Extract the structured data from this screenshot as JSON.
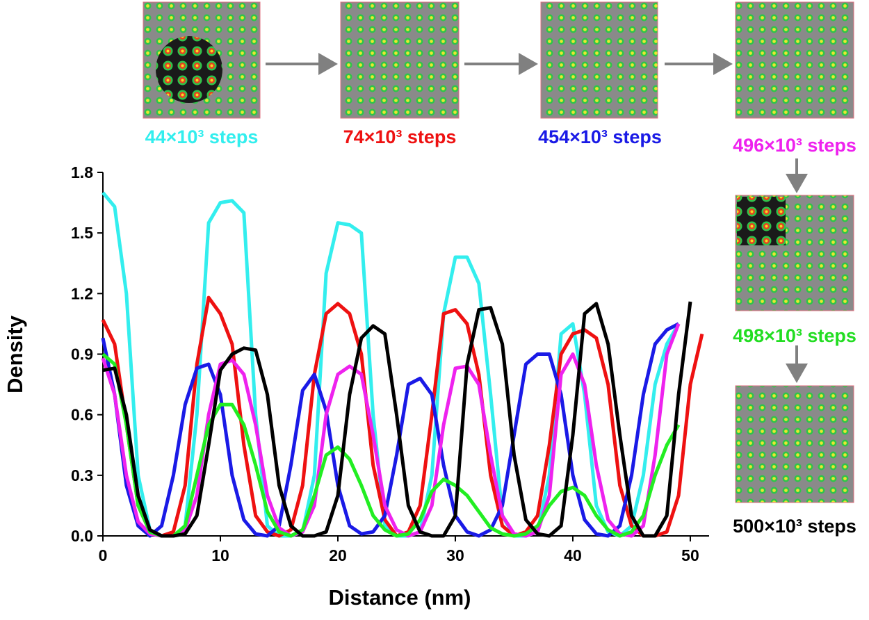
{
  "chart_data": {
    "type": "line",
    "x_label": "Distance (nm)",
    "y_label": "Density",
    "x": [
      0,
      1,
      2,
      3,
      4,
      5,
      6,
      7,
      8,
      9,
      10,
      11,
      12,
      13,
      14,
      15,
      16,
      17,
      18,
      19,
      20,
      21,
      22,
      23,
      24,
      25,
      26,
      27,
      28,
      29,
      30,
      31,
      32,
      33,
      34,
      35,
      36,
      37,
      38,
      39,
      40,
      41,
      42,
      43,
      44,
      45,
      46,
      47,
      48,
      49,
      50,
      51
    ],
    "series": [
      {
        "name": "44×10³ steps",
        "color": "#33eeee",
        "values": [
          1.7,
          1.63,
          1.2,
          0.3,
          0.03,
          0.0,
          0.0,
          0.05,
          0.6,
          1.55,
          1.65,
          1.66,
          1.6,
          0.6,
          0.05,
          0.0,
          0.0,
          0.02,
          0.3,
          1.3,
          1.55,
          1.54,
          1.5,
          0.6,
          0.05,
          0.0,
          0.0,
          0.02,
          0.3,
          1.1,
          1.38,
          1.38,
          1.25,
          0.7,
          0.1,
          0.0,
          0.0,
          0.02,
          0.3,
          1.0,
          1.05,
          0.7,
          0.15,
          0.02,
          0.0,
          0.05,
          0.3,
          0.75,
          0.95,
          1.05,
          null,
          null
        ]
      },
      {
        "name": "74×10³ steps",
        "color": "#ee1111",
        "values": [
          1.07,
          0.95,
          0.55,
          0.15,
          0.02,
          0.0,
          0.02,
          0.25,
          0.85,
          1.18,
          1.1,
          0.95,
          0.45,
          0.1,
          0.02,
          0.0,
          0.03,
          0.25,
          0.8,
          1.1,
          1.15,
          1.1,
          0.9,
          0.35,
          0.08,
          0.0,
          0.02,
          0.15,
          0.6,
          1.1,
          1.12,
          1.05,
          0.8,
          0.3,
          0.05,
          0.0,
          0.02,
          0.1,
          0.45,
          0.9,
          1.0,
          1.02,
          0.98,
          0.75,
          0.25,
          0.05,
          0.0,
          0.0,
          0.02,
          0.2,
          0.75,
          1.0
        ]
      },
      {
        "name": "454×10³ steps",
        "color": "#1a1ae6",
        "values": [
          0.98,
          0.7,
          0.25,
          0.05,
          0.0,
          0.05,
          0.3,
          0.65,
          0.83,
          0.85,
          0.7,
          0.3,
          0.08,
          0.01,
          0.0,
          0.05,
          0.35,
          0.72,
          0.8,
          0.62,
          0.25,
          0.05,
          0.01,
          0.02,
          0.1,
          0.4,
          0.75,
          0.78,
          0.7,
          0.35,
          0.1,
          0.02,
          0.0,
          0.03,
          0.15,
          0.5,
          0.85,
          0.9,
          0.9,
          0.7,
          0.3,
          0.08,
          0.01,
          0.0,
          0.05,
          0.3,
          0.7,
          0.95,
          1.02,
          1.05,
          null,
          null
        ]
      },
      {
        "name": "496×10³ steps",
        "color": "#ee22ee",
        "values": [
          0.88,
          0.7,
          0.3,
          0.07,
          0.01,
          0.0,
          0.0,
          0.03,
          0.2,
          0.6,
          0.85,
          0.87,
          0.8,
          0.55,
          0.2,
          0.04,
          0.0,
          0.02,
          0.15,
          0.6,
          0.8,
          0.84,
          0.8,
          0.5,
          0.15,
          0.03,
          0.0,
          0.02,
          0.15,
          0.55,
          0.83,
          0.84,
          0.75,
          0.4,
          0.1,
          0.01,
          0.0,
          0.02,
          0.2,
          0.8,
          0.9,
          0.75,
          0.35,
          0.08,
          0.01,
          0.0,
          0.05,
          0.4,
          0.9,
          1.05,
          null,
          null
        ]
      },
      {
        "name": "498×10³ steps",
        "color": "#22ee22",
        "values": [
          0.9,
          0.85,
          0.55,
          0.15,
          0.02,
          0.0,
          0.0,
          0.05,
          0.3,
          0.55,
          0.65,
          0.65,
          0.55,
          0.35,
          0.12,
          0.02,
          0.0,
          0.03,
          0.2,
          0.4,
          0.44,
          0.38,
          0.25,
          0.1,
          0.03,
          0.0,
          0.01,
          0.08,
          0.22,
          0.28,
          0.25,
          0.2,
          0.12,
          0.04,
          0.01,
          0.0,
          0.01,
          0.05,
          0.15,
          0.22,
          0.24,
          0.2,
          0.1,
          0.03,
          0.0,
          0.02,
          0.1,
          0.3,
          0.45,
          0.55,
          null,
          null
        ]
      },
      {
        "name": "500×10³ steps",
        "color": "#000000",
        "values": [
          0.82,
          0.83,
          0.6,
          0.2,
          0.03,
          0.0,
          0.0,
          0.01,
          0.1,
          0.45,
          0.82,
          0.9,
          0.93,
          0.92,
          0.7,
          0.25,
          0.05,
          0.0,
          0.0,
          0.02,
          0.2,
          0.7,
          0.98,
          1.04,
          1.0,
          0.6,
          0.15,
          0.02,
          0.0,
          0.0,
          0.1,
          0.85,
          1.12,
          1.13,
          0.95,
          0.4,
          0.08,
          0.01,
          0.0,
          0.05,
          0.5,
          1.1,
          1.15,
          0.95,
          0.5,
          0.1,
          0.0,
          0.0,
          0.1,
          0.7,
          1.16,
          null
        ]
      }
    ],
    "xlim": [
      0,
      51.6
    ],
    "xticks": [
      0,
      10,
      20,
      30,
      40,
      50
    ],
    "ylim": [
      0,
      1.8
    ],
    "yticks": [
      {
        "value": 0,
        "label": "0.0"
      },
      0.3,
      0.6,
      0.9,
      1.2,
      1.5,
      1.8
    ]
  }
}
